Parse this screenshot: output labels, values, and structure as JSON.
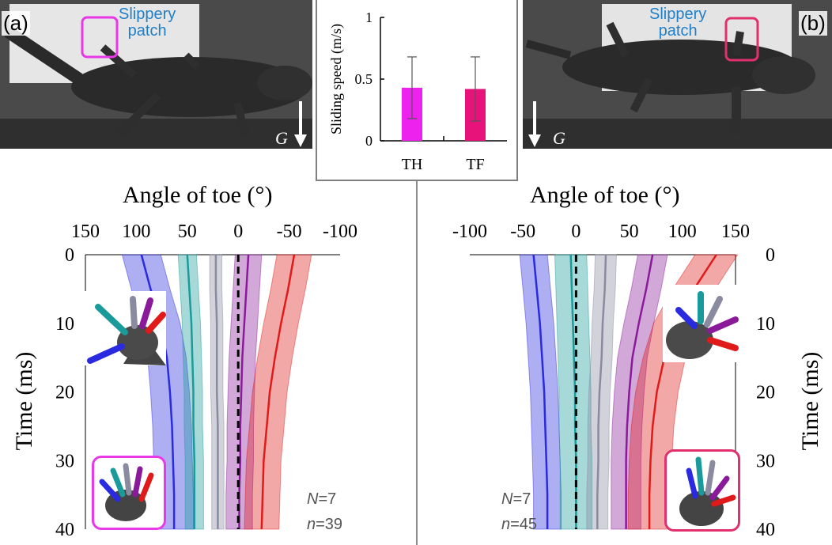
{
  "panels": {
    "a": {
      "letter": "(a)",
      "patch_label": "Slippery\npatch",
      "gravity_label": "G",
      "stats": {
        "N_label": "N",
        "N_value": "=7",
        "n_label": "n",
        "n_value": "=39"
      }
    },
    "b": {
      "letter": "(b)",
      "patch_label": "Slippery\npatch",
      "gravity_label": "G",
      "stats": {
        "N_label": "N",
        "N_value": "=7",
        "n_label": "n",
        "n_value": "=45"
      }
    }
  },
  "colors": {
    "hind_highlight": "#e838e8",
    "fore_highlight": "#e0306e",
    "toe1": "#2a2ae0",
    "toe2": "#1a9a9a",
    "toe3": "#8a8aa0",
    "toe4": "#8a1a9a",
    "toe5": "#e01a1a"
  },
  "chart_data": [
    {
      "type": "bar",
      "title": "",
      "xlabel": "",
      "ylabel": "Sliding speed (m/s)",
      "categories": [
        "TH",
        "TF"
      ],
      "values": [
        0.43,
        0.42
      ],
      "error": [
        0.25,
        0.26
      ],
      "ylim": [
        0,
        1
      ],
      "yticks": [
        "0",
        "0.5",
        "1"
      ],
      "colors": [
        "#ee22ee",
        "#e8137a"
      ]
    },
    {
      "type": "line",
      "panel": "a",
      "title": "",
      "xlabel": "Angle of toe (°)",
      "ylabel": "Time (ms)",
      "xlim": [
        150,
        -100
      ],
      "ylim": [
        0,
        40
      ],
      "xticks": [
        "150",
        "100",
        "50",
        "0",
        "-50",
        "-100"
      ],
      "yticks": [
        "0",
        "10",
        "20",
        "30",
        "40"
      ],
      "time": [
        0,
        5,
        10,
        15,
        20,
        25,
        30,
        35,
        40
      ],
      "series": [
        {
          "color": "#2a2ae0",
          "mean": [
            95,
            86,
            76,
            70,
            67,
            65,
            64,
            63,
            63
          ],
          "band": 19
        },
        {
          "color": "#1a9a9a",
          "mean": [
            50,
            48,
            46,
            45,
            44,
            44,
            43,
            43,
            43
          ],
          "band": 9
        },
        {
          "color": "#8a8aa0",
          "mean": [
            22,
            22,
            21,
            21,
            21,
            20,
            20,
            20,
            20
          ],
          "band": 6
        },
        {
          "color": "#8a1a9a",
          "mean": [
            -10,
            -8,
            -6,
            -4,
            -3,
            -2,
            -2,
            -1,
            -1
          ],
          "band": 13
        },
        {
          "color": "#e01a1a",
          "mean": [
            -55,
            -49,
            -42,
            -36,
            -31,
            -28,
            -25,
            -24,
            -23
          ],
          "band": 17
        }
      ],
      "reference_line": 0
    },
    {
      "type": "line",
      "panel": "b",
      "title": "",
      "xlabel": "Angle of toe (°)",
      "ylabel": "Time (ms)",
      "xlim": [
        -100,
        150
      ],
      "ylim": [
        0,
        40
      ],
      "xticks": [
        "-100",
        "-50",
        "0",
        "50",
        "100",
        "150"
      ],
      "yticks": [
        "0",
        "10",
        "20",
        "30",
        "40"
      ],
      "time": [
        0,
        5,
        10,
        15,
        20,
        25,
        30,
        35,
        40
      ],
      "series": [
        {
          "color": "#2a2ae0",
          "mean": [
            -40,
            -37,
            -34,
            -32,
            -30,
            -29,
            -28,
            -27,
            -27
          ],
          "band": 13
        },
        {
          "color": "#1a9a9a",
          "mean": [
            -5,
            -4,
            -3,
            -2,
            -1,
            -1,
            0,
            0,
            0
          ],
          "band": 15
        },
        {
          "color": "#8a8aa0",
          "mean": [
            28,
            27,
            25,
            24,
            22,
            21,
            21,
            20,
            20
          ],
          "band": 10
        },
        {
          "color": "#8a1a9a",
          "mean": [
            72,
            66,
            59,
            53,
            50,
            48,
            47,
            47,
            47
          ],
          "band": 14
        },
        {
          "color": "#e01a1a",
          "mean": [
            132,
            111,
            93,
            83,
            76,
            72,
            70,
            69,
            69
          ],
          "band": 20
        }
      ],
      "reference_line": 0
    }
  ]
}
